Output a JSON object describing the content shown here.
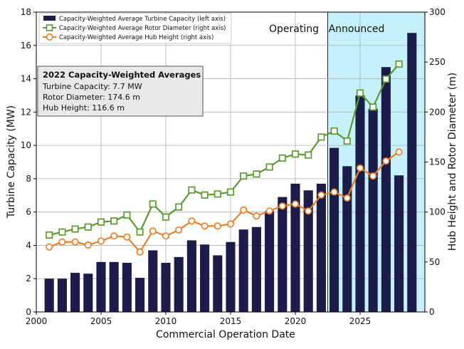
{
  "chart_data": {
    "type": "bar+line",
    "title": "",
    "xlabel": "Commercial Operation Date",
    "ylabel_left": "Turbine Capacity (MW)",
    "ylabel_right": "Hub Height and Rotor Diameter (m)",
    "xlim": [
      2000,
      2030
    ],
    "ylim_left": [
      0,
      18
    ],
    "ylim_right": [
      0,
      300
    ],
    "x_ticks": [
      2000,
      2005,
      2010,
      2015,
      2020,
      2025
    ],
    "y_ticks_left": [
      0,
      2,
      4,
      6,
      8,
      10,
      12,
      14,
      16,
      18
    ],
    "y_ticks_right": [
      0,
      50,
      100,
      150,
      200,
      250,
      300
    ],
    "grid": true,
    "legend_position": "top-left",
    "regions": [
      {
        "label": "Operating",
        "x_range": [
          2000,
          2022.5
        ],
        "color": "#ffffff"
      },
      {
        "label": "Announced",
        "x_range": [
          2022.5,
          2030
        ],
        "color": "#c5f1fb"
      }
    ],
    "series": [
      {
        "name": "Capacity-Weighted Average Turbine Capacity (left axis)",
        "type": "bar",
        "axis": "left",
        "color": "#1c1c4a",
        "x": [
          2001,
          2002,
          2003,
          2004,
          2005,
          2006,
          2007,
          2008,
          2009,
          2010,
          2011,
          2012,
          2013,
          2014,
          2015,
          2016,
          2017,
          2018,
          2019,
          2020,
          2021,
          2022,
          2023,
          2024,
          2025,
          2026,
          2027,
          2028,
          2029
        ],
        "values": [
          2.0,
          2.0,
          2.35,
          2.3,
          3.0,
          3.0,
          2.95,
          2.05,
          3.7,
          2.95,
          3.3,
          4.3,
          4.05,
          3.4,
          4.2,
          4.95,
          5.1,
          6.05,
          6.9,
          7.7,
          7.3,
          7.7,
          9.85,
          8.75,
          13.0,
          12.2,
          14.7,
          8.2,
          16.75
        ]
      },
      {
        "name": "Capacity-Weighted Average Rotor Diameter (right axis)",
        "type": "line",
        "axis": "right",
        "color": "#5b9a2e",
        "marker": "square",
        "x": [
          2001,
          2002,
          2003,
          2004,
          2005,
          2006,
          2007,
          2008,
          2009,
          2010,
          2011,
          2012,
          2013,
          2014,
          2015,
          2016,
          2017,
          2018,
          2019,
          2020,
          2021,
          2022,
          2023,
          2024,
          2025,
          2026,
          2027,
          2028
        ],
        "values": [
          77,
          80,
          83,
          85,
          90,
          91,
          97,
          80,
          108,
          95,
          105,
          122,
          117,
          118,
          120,
          136,
          138,
          145,
          154,
          158,
          157,
          175,
          181,
          171,
          219,
          205,
          233,
          248
        ]
      },
      {
        "name": "Capacity-Weighted Average Hub Height (right axis)",
        "type": "line",
        "axis": "right",
        "color": "#ee7d24",
        "marker": "circle",
        "x": [
          2001,
          2002,
          2003,
          2004,
          2005,
          2006,
          2007,
          2008,
          2009,
          2010,
          2011,
          2012,
          2013,
          2014,
          2015,
          2016,
          2017,
          2018,
          2019,
          2020,
          2021,
          2022,
          2023,
          2024,
          2025,
          2026,
          2027,
          2028
        ],
        "values": [
          65,
          70,
          70,
          67,
          71,
          76,
          75,
          60,
          81,
          76,
          82,
          91,
          86,
          86,
          88,
          102,
          96,
          101,
          106,
          108,
          101,
          117,
          120,
          114,
          144,
          136,
          151,
          160
        ]
      }
    ],
    "annotation_box": {
      "title": "2022 Capacity-Weighted Averages",
      "lines": [
        "Turbine Capacity: 7.7 MW",
        "Rotor Diameter: 174.6 m",
        "Hub Height: 116.6 m"
      ]
    }
  }
}
